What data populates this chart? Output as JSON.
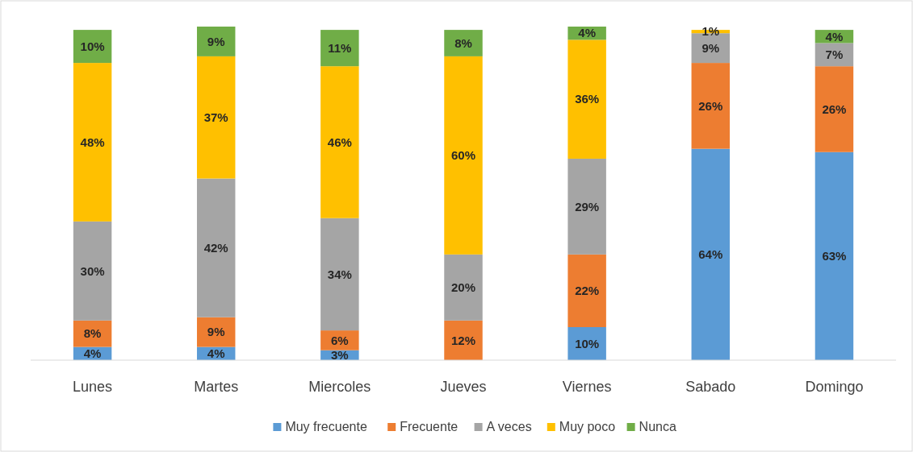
{
  "chart_data": {
    "type": "bar",
    "stacked": true,
    "legend": "bottom",
    "categories": [
      "Lunes",
      "Martes",
      "Miercoles",
      "Jueves",
      "Viernes",
      "Sabado",
      "Domingo"
    ],
    "series": [
      {
        "name": "Muy frecuente",
        "color": "#5b9bd5",
        "values": [
          4,
          4,
          3,
          null,
          10,
          64,
          63
        ],
        "value_labels": [
          "4%",
          "4%",
          "3%",
          null,
          "10%",
          "64%",
          "63%"
        ]
      },
      {
        "name": "Frecuente",
        "color": "#ed7d31",
        "values": [
          8,
          9,
          6,
          12,
          22,
          26,
          26
        ],
        "value_labels": [
          "8%",
          "9%",
          "6%",
          "12%",
          "22%",
          "26%",
          "26%"
        ]
      },
      {
        "name": "A veces",
        "color": "#a5a5a5",
        "values": [
          30,
          42,
          34,
          20,
          29,
          9,
          7
        ],
        "value_labels": [
          "30%",
          "42%",
          "34%",
          "20%",
          "29%",
          "9%",
          "7%"
        ]
      },
      {
        "name": "Muy poco",
        "color": "#ffc000",
        "values": [
          48,
          37,
          46,
          60,
          36,
          1,
          null
        ],
        "value_labels": [
          "48%",
          "37%",
          "46%",
          "60%",
          "36%",
          "1%",
          null
        ]
      },
      {
        "name": "Nunca",
        "color": "#70ad47",
        "values": [
          10,
          9,
          11,
          8,
          4,
          null,
          4
        ],
        "value_labels": [
          "10%",
          "9%",
          "11%",
          "8%",
          "4%",
          null,
          "4%"
        ]
      }
    ]
  }
}
